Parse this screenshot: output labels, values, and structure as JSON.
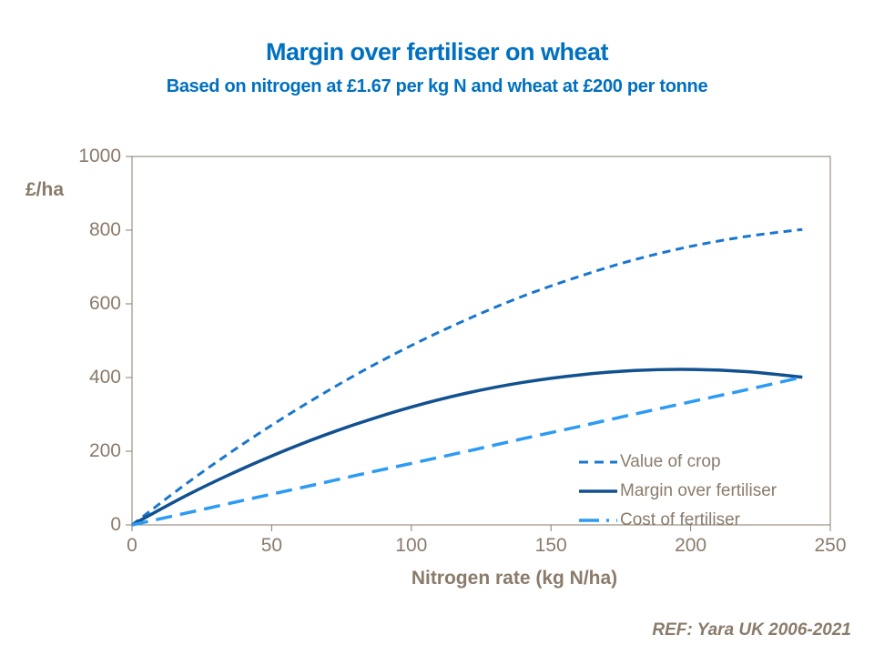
{
  "title": {
    "text": "Margin over fertiliser on wheat",
    "color": "#0070C0"
  },
  "subtitle": {
    "text": "Based on nitrogen at £1.67 per kg N and wheat at £200 per tonne",
    "color": "#0070C0"
  },
  "footer": {
    "ref_text": "REF: Yara UK 2006-2021"
  },
  "theme": {
    "axis_text_color": "#8A7B6B",
    "axis_line_color": "#8A7B6B",
    "title_color": "#0070C0"
  },
  "chart_data": {
    "type": "line",
    "title": "Margin over fertiliser on wheat",
    "subtitle": "Based on nitrogen at £1.67 per kg N and wheat at £200 per tonne",
    "xlabel": "Nitrogen rate (kg N/ha)",
    "ylabel": "£/ha",
    "xlim": [
      0,
      250
    ],
    "ylim": [
      0,
      1000
    ],
    "x_ticks": [
      0,
      50,
      100,
      150,
      200,
      250
    ],
    "y_ticks": [
      0,
      200,
      400,
      600,
      800,
      1000
    ],
    "grid": false,
    "legend_position": "inside-bottom-right",
    "x": [
      0,
      20,
      40,
      60,
      80,
      100,
      120,
      140,
      160,
      180,
      200,
      220,
      240
    ],
    "series": [
      {
        "name": "Value of crop",
        "color": "#1876CE",
        "style": "dashed",
        "stroke_width": 3,
        "dash": "9 6",
        "legend_dash": "10 7",
        "values": [
          0,
          115,
          221,
          318,
          407,
          487,
          558,
          621,
          674,
          720,
          756,
          783,
          802
        ]
      },
      {
        "name": "Margin over fertiliser",
        "color": "#11518F",
        "style": "solid",
        "stroke_width": 3.5,
        "dash": "",
        "legend_dash": "",
        "values": [
          0,
          82,
          154,
          218,
          273,
          320,
          358,
          387,
          407,
          419,
          422,
          416,
          401
        ]
      },
      {
        "name": "Cost of fertiliser",
        "color": "#2D9BF3",
        "style": "long-dashed",
        "stroke_width": 3.5,
        "dash": "18 9",
        "legend_dash": "22 8 3 8",
        "values": [
          0,
          33,
          67,
          100,
          134,
          167,
          200,
          234,
          267,
          301,
          334,
          367,
          401
        ]
      }
    ]
  }
}
